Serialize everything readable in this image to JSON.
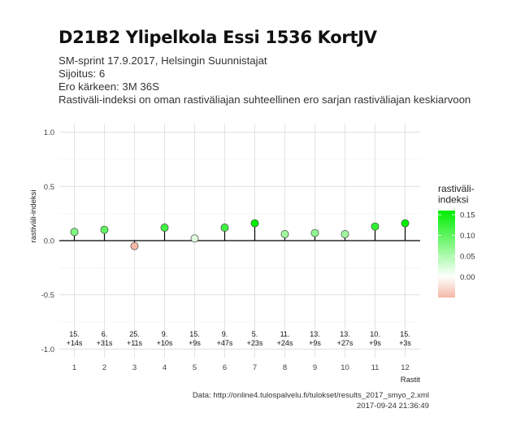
{
  "header": {
    "title": "D21B2 Ylipelkola Essi 1536 KortJV",
    "subtitle_lines": [
      "SM-sprint 17.9.2017, Helsingin Suunnistajat",
      "Sijoitus: 6",
      "Ero kärkeen: 3M 36S",
      "Rastiväli-indeksi on oman rastiväliajan suhteellinen ero sarjan rastiväliajan keskiarvoon"
    ]
  },
  "caption": {
    "source": "Data: http://online4.tulospalvelu.fi/tulokset/results_2017_smyo_2.xml",
    "timestamp": "2017-09-24 21:36:49"
  },
  "chart_data": {
    "type": "scatter",
    "xlabel": "Rastit",
    "ylabel": "rastiväli-indeksi",
    "ylim": [
      -1.08,
      1.08
    ],
    "yticks": [
      -1.0,
      -0.5,
      0.0,
      0.5,
      1.0
    ],
    "ytick_labels": [
      "-1.0",
      "-0.5",
      "0.0",
      "0.5",
      "1.0"
    ],
    "x": [
      1,
      2,
      3,
      4,
      5,
      6,
      7,
      8,
      9,
      10,
      11,
      12
    ],
    "values": [
      0.08,
      0.1,
      -0.05,
      0.12,
      0.02,
      0.12,
      0.16,
      0.06,
      0.07,
      0.06,
      0.13,
      0.16
    ],
    "ranks": [
      "15.",
      "6.",
      "25.",
      "9.",
      "15.",
      "9.",
      "5.",
      "11.",
      "13.",
      "13.",
      "10.",
      "15."
    ],
    "diffs": [
      "+14s",
      "+31s",
      "+11s",
      "+10s",
      "+9s",
      "+47s",
      "+23s",
      "+24s",
      "+9s",
      "+27s",
      "+9s",
      "+3s"
    ],
    "legend": {
      "title_lines": [
        "rastiväli-",
        "indeksi"
      ],
      "ticks": [
        0.15,
        0.1,
        0.05,
        0.0
      ],
      "tick_labels": [
        "0.15",
        "0.10",
        "0.05",
        "0.00"
      ],
      "range": [
        -0.05,
        0.16
      ],
      "placement": "right"
    },
    "colors": {
      "positive": "#00ee00",
      "zero": "#ffffff",
      "negative": "#f4b8a6"
    },
    "grid": true
  }
}
